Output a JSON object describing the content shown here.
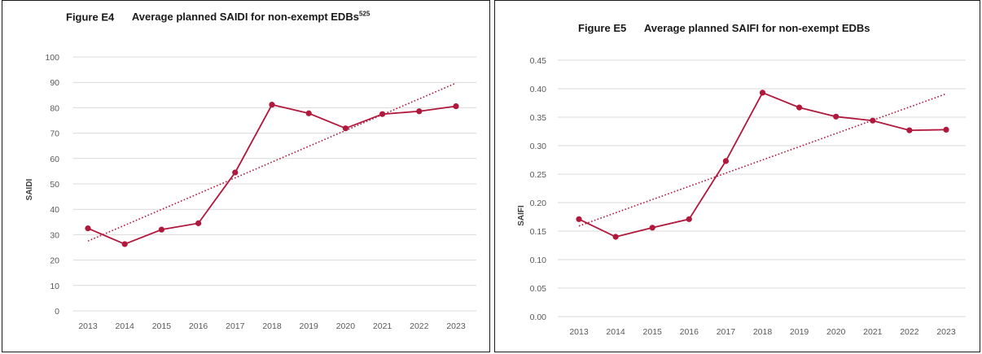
{
  "chart_data": [
    {
      "type": "line",
      "figure_label": "Figure E4",
      "title": "Average planned SAIDI for non-exempt EDBs",
      "title_superscript": "525",
      "xlabel": "",
      "ylabel": "SAIDI",
      "ylim": [
        0,
        100
      ],
      "yticks": [
        "0",
        "10",
        "20",
        "30",
        "40",
        "50",
        "60",
        "70",
        "80",
        "90",
        "100"
      ],
      "x": [
        "2013",
        "2014",
        "2015",
        "2016",
        "2017",
        "2018",
        "2019",
        "2020",
        "2021",
        "2022",
        "2023"
      ],
      "series": [
        {
          "values": [
            32.5,
            26.3,
            32.0,
            34.5,
            54.5,
            81.2,
            77.8,
            71.9,
            77.5,
            78.6,
            80.6
          ],
          "color": "#b0183c"
        }
      ],
      "trendline": {
        "style": "dotted",
        "start": 27.5,
        "end": 89.7,
        "color": "#b0183c"
      },
      "grid": true,
      "legend": "none"
    },
    {
      "type": "line",
      "figure_label": "Figure E5",
      "title": "Average planned SAIFI for non-exempt EDBs",
      "xlabel": "",
      "ylabel": "SAIFI",
      "ylim": [
        0,
        0.45
      ],
      "yticks": [
        "0.00",
        "0.05",
        "0.10",
        "0.15",
        "0.20",
        "0.25",
        "0.30",
        "0.35",
        "0.40",
        "0.45"
      ],
      "x": [
        "2013",
        "2014",
        "2015",
        "2016",
        "2017",
        "2018",
        "2019",
        "2020",
        "2021",
        "2022",
        "2023"
      ],
      "series": [
        {
          "values": [
            0.171,
            0.14,
            0.156,
            0.171,
            0.273,
            0.393,
            0.367,
            0.351,
            0.344,
            0.327,
            0.328
          ],
          "color": "#b0183c"
        }
      ],
      "trendline": {
        "style": "dotted",
        "start": 0.159,
        "end": 0.391,
        "color": "#b0183c"
      },
      "grid": true,
      "legend": "none"
    }
  ]
}
